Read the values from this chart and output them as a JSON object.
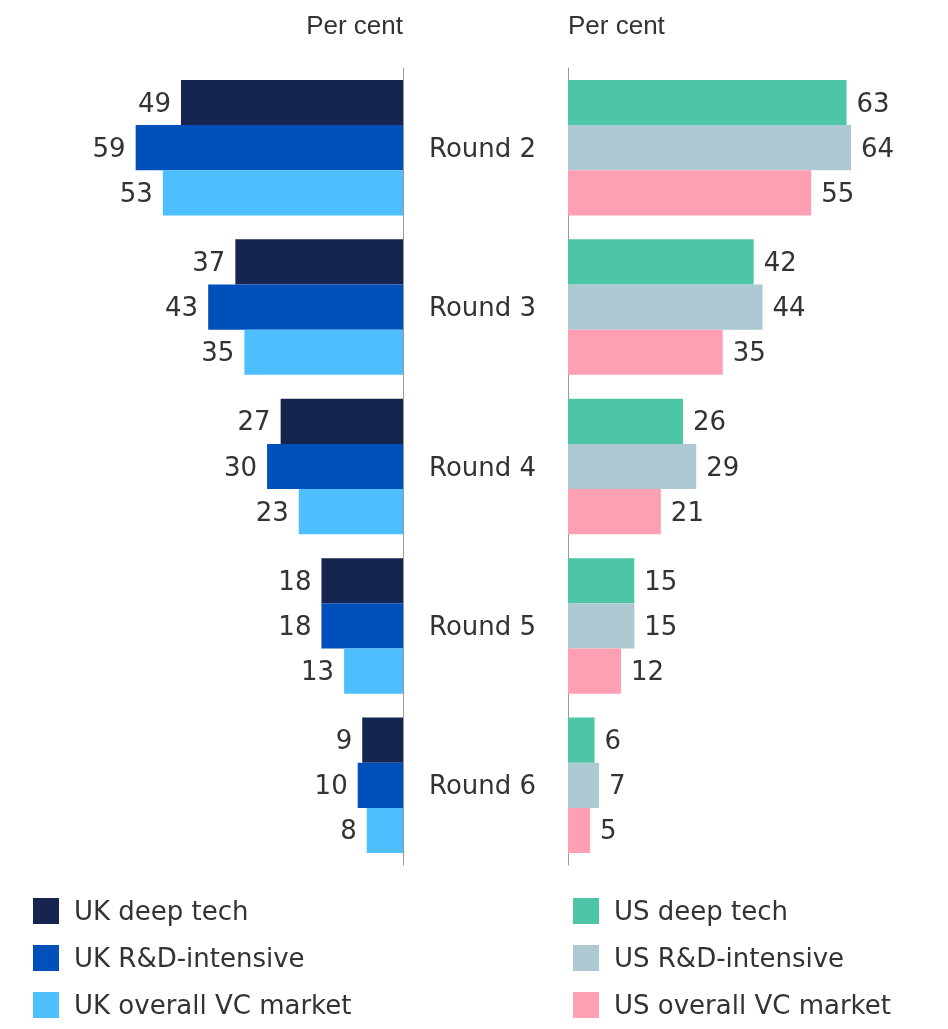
{
  "chart_data": [
    {
      "type": "bar",
      "orientation": "horizontal",
      "xlabel": "Per cent",
      "categories": [
        "Round 2",
        "Round 3",
        "Round 4",
        "Round 5",
        "Round 6"
      ],
      "data_labels": true,
      "legend": "bottom",
      "tick_labels": "y",
      "series": [
        {
          "name": "UK deep tech",
          "color": "#15254f",
          "values": [
            49,
            37,
            27,
            18,
            9
          ]
        },
        {
          "name": "UK R&D-intensive",
          "color": "#0050bc",
          "values": [
            59,
            43,
            30,
            18,
            10
          ]
        },
        {
          "name": "UK overall VC market",
          "color": "#4dbfff",
          "values": [
            53,
            35,
            23,
            13,
            8
          ]
        }
      ]
    },
    {
      "type": "bar",
      "orientation": "horizontal",
      "xlabel": "Per cent",
      "categories": [
        null,
        null,
        null,
        null,
        null
      ],
      "data_labels": true,
      "legend": "bottom",
      "tick_labels": false,
      "series": [
        {
          "name": "US deep tech",
          "color": "#4cc6a6",
          "values": [
            63,
            42,
            26,
            15,
            6
          ]
        },
        {
          "name": "US R&D-intensive",
          "color": "#adc9d2",
          "values": [
            64,
            44,
            29,
            15,
            7
          ]
        },
        {
          "name": "US overall VC market",
          "color": "#ff9fb3",
          "values": [
            55,
            35,
            21,
            12,
            5
          ]
        }
      ]
    }
  ]
}
